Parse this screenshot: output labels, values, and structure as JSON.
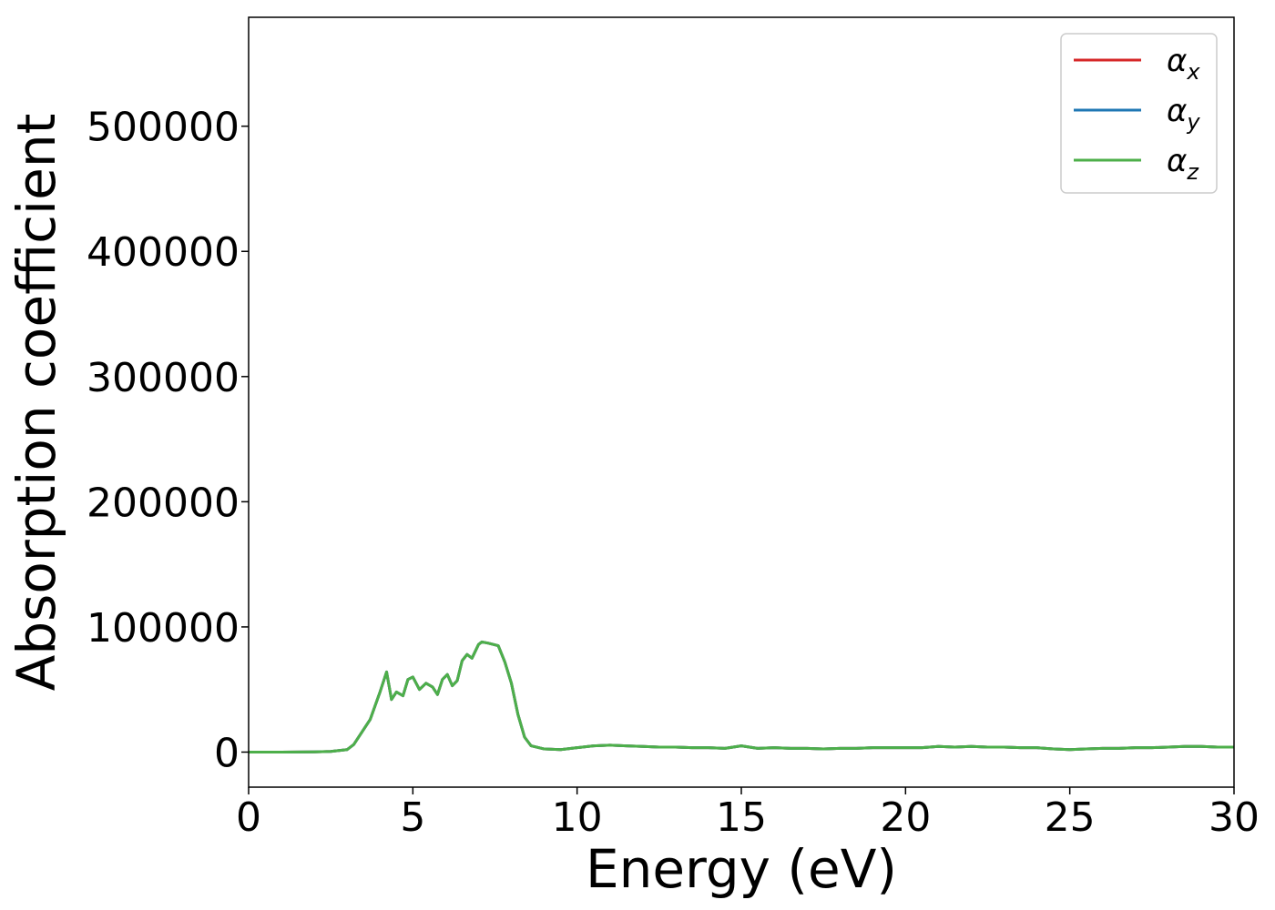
{
  "chart_data": {
    "type": "line",
    "title": "",
    "xlabel": "Energy (eV)",
    "ylabel": "Absorption coefficient",
    "xlim": [
      0,
      30
    ],
    "ylim": [
      -28000,
      587000
    ],
    "xticks": [
      0,
      5,
      10,
      15,
      20,
      25,
      30
    ],
    "yticks": [
      0,
      100000,
      200000,
      300000,
      400000,
      500000
    ],
    "grid": false,
    "legend_position": "top-right",
    "x": [
      0,
      1,
      2,
      2.5,
      3,
      3.2,
      3.5,
      3.7,
      4.0,
      4.2,
      4.35,
      4.5,
      4.7,
      4.85,
      5.0,
      5.2,
      5.4,
      5.6,
      5.75,
      5.9,
      6.05,
      6.2,
      6.35,
      6.5,
      6.65,
      6.8,
      7.0,
      7.1,
      7.3,
      7.6,
      7.8,
      8.0,
      8.2,
      8.4,
      8.6,
      9.0,
      9.5,
      10.0,
      10.5,
      11.0,
      11.5,
      12.0,
      12.5,
      13.0,
      13.5,
      14.0,
      14.5,
      15.0,
      15.5,
      16.0,
      16.5,
      17.0,
      17.5,
      18.0,
      18.5,
      19.0,
      19.5,
      20.0,
      20.5,
      21.0,
      21.5,
      22.0,
      22.5,
      23.0,
      23.5,
      24.0,
      24.5,
      25.0,
      25.5,
      26.0,
      26.5,
      27.0,
      27.5,
      28.0,
      28.5,
      29.0,
      29.5,
      30.0
    ],
    "series": [
      {
        "name": "α",
        "subscript": "x",
        "color": "#d62728",
        "values": [
          0,
          0,
          200,
          500,
          2000,
          6000,
          18000,
          26000,
          48000,
          64000,
          42000,
          48000,
          45000,
          58000,
          60000,
          50000,
          55000,
          52000,
          46000,
          58000,
          62000,
          53000,
          57000,
          73000,
          78000,
          75000,
          86000,
          88000,
          87000,
          85000,
          72000,
          55000,
          30000,
          12000,
          5000,
          2500,
          2000,
          3500,
          5000,
          5500,
          5000,
          4500,
          4000,
          4000,
          3500,
          3500,
          3000,
          5000,
          3000,
          3500,
          3000,
          3000,
          2500,
          3000,
          3000,
          3500,
          3500,
          3500,
          3500,
          4500,
          4000,
          4500,
          4000,
          4000,
          3500,
          3500,
          2500,
          2000,
          2500,
          3000,
          3000,
          3500,
          3500,
          4000,
          4500,
          4500,
          4000,
          4000
        ]
      },
      {
        "name": "α",
        "subscript": "y",
        "color": "#1f77b4",
        "values": [
          0,
          0,
          200,
          500,
          2000,
          6000,
          18000,
          26000,
          48000,
          64000,
          42000,
          48000,
          45000,
          58000,
          60000,
          50000,
          55000,
          52000,
          46000,
          58000,
          62000,
          53000,
          57000,
          73000,
          78000,
          75000,
          86000,
          88000,
          87000,
          85000,
          72000,
          55000,
          30000,
          12000,
          5000,
          2500,
          2000,
          3500,
          5000,
          5500,
          5000,
          4500,
          4000,
          4000,
          3500,
          3500,
          3000,
          5000,
          3000,
          3500,
          3000,
          3000,
          2500,
          3000,
          3000,
          3500,
          3500,
          3500,
          3500,
          4500,
          4000,
          4500,
          4000,
          4000,
          3500,
          3500,
          2500,
          2000,
          2500,
          3000,
          3000,
          3500,
          3500,
          4000,
          4500,
          4500,
          4000,
          4000
        ]
      },
      {
        "name": "α",
        "subscript": "z",
        "color": "#4daf4a",
        "values": [
          0,
          0,
          200,
          500,
          2000,
          6000,
          18000,
          26000,
          48000,
          64000,
          42000,
          48000,
          45000,
          58000,
          60000,
          50000,
          55000,
          52000,
          46000,
          58000,
          62000,
          53000,
          57000,
          73000,
          78000,
          75000,
          86000,
          88000,
          87000,
          85000,
          72000,
          55000,
          30000,
          12000,
          5000,
          2500,
          2000,
          3500,
          5000,
          5500,
          5000,
          4500,
          4000,
          4000,
          3500,
          3500,
          3000,
          5000,
          3000,
          3500,
          3000,
          3000,
          2500,
          3000,
          3000,
          3500,
          3500,
          3500,
          3500,
          4500,
          4000,
          4500,
          4000,
          4000,
          3500,
          3500,
          2500,
          2000,
          2500,
          3000,
          3000,
          3500,
          3500,
          4000,
          4500,
          4500,
          4000,
          4000
        ]
      }
    ]
  }
}
